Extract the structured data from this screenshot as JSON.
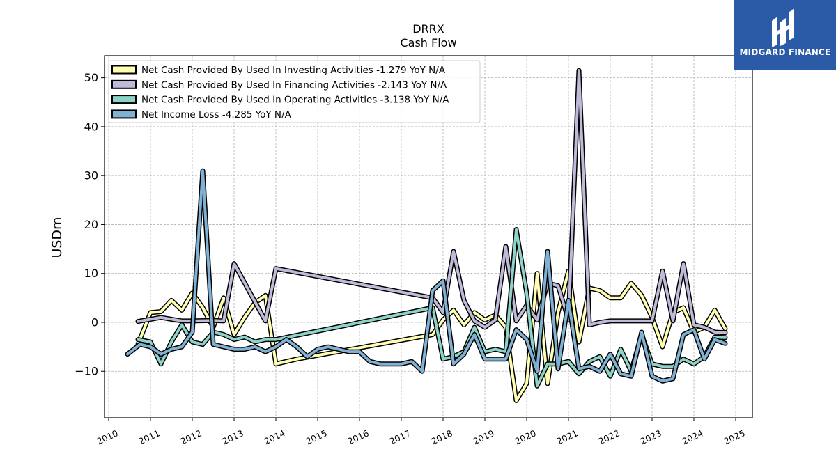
{
  "logo": {
    "text": "MIDGARD FINANCE",
    "bg": "#2b5aa7"
  },
  "chart_data": {
    "type": "line",
    "title": "DRRX",
    "subtitle": "Cash Flow",
    "ylabel": "USDm",
    "xlabel": "",
    "xlim": [
      2009.9,
      2025.4
    ],
    "ylim": [
      -19.5,
      54.5
    ],
    "yticks": [
      -10,
      0,
      10,
      20,
      30,
      40,
      50
    ],
    "yticklabels": [
      "−10",
      "0",
      "10",
      "20",
      "30",
      "40",
      "50"
    ],
    "xticks": [
      2010,
      2011,
      2012,
      2013,
      2014,
      2015,
      2016,
      2017,
      2018,
      2019,
      2020,
      2021,
      2022,
      2023,
      2024,
      2025
    ],
    "xticklabels": [
      "2010",
      "2011",
      "2012",
      "2013",
      "2014",
      "2015",
      "2016",
      "2017",
      "2018",
      "2019",
      "2020",
      "2021",
      "2022",
      "2023",
      "2024",
      "2025"
    ],
    "grid": true,
    "legend_position": "upper-left",
    "series": [
      {
        "name": "Net Cash Provided By Used In Investing Activities  -1.279 YoY N/A",
        "color": "#ffffb3",
        "points": [
          [
            2010.7,
            -4.5
          ],
          [
            2011.0,
            2.0
          ],
          [
            2011.25,
            2.2
          ],
          [
            2011.5,
            4.5
          ],
          [
            2011.75,
            2.5
          ],
          [
            2012.0,
            6.0
          ],
          [
            2012.25,
            3.0
          ],
          [
            2012.5,
            -1.0
          ],
          [
            2012.75,
            5.0
          ],
          [
            2013.0,
            -2.5
          ],
          [
            2013.25,
            1.0
          ],
          [
            2013.5,
            4.0
          ],
          [
            2013.75,
            5.5
          ],
          [
            2014.0,
            -8.5
          ],
          [
            2014.5,
            -7.5
          ],
          [
            2017.75,
            -2.5
          ],
          [
            2018.0,
            0.5
          ],
          [
            2018.25,
            2.5
          ],
          [
            2018.5,
            -0.5
          ],
          [
            2018.75,
            2.0
          ],
          [
            2019.0,
            0.5
          ],
          [
            2019.25,
            1.5
          ],
          [
            2019.5,
            -1.0
          ],
          [
            2019.75,
            -16.0
          ],
          [
            2020.0,
            -12.5
          ],
          [
            2020.25,
            10.0
          ],
          [
            2020.5,
            -12.5
          ],
          [
            2020.75,
            2.0
          ],
          [
            2021.0,
            10.5
          ],
          [
            2021.25,
            -4.0
          ],
          [
            2021.5,
            7.0
          ],
          [
            2021.75,
            6.5
          ],
          [
            2022.0,
            5.0
          ],
          [
            2022.25,
            5.0
          ],
          [
            2022.5,
            8.0
          ],
          [
            2022.75,
            5.5
          ],
          [
            2023.0,
            1.0
          ],
          [
            2023.25,
            -5.0
          ],
          [
            2023.5,
            2.0
          ],
          [
            2023.75,
            3.0
          ],
          [
            2024.0,
            -2.0
          ],
          [
            2024.25,
            -1.0
          ],
          [
            2024.5,
            2.5
          ],
          [
            2024.75,
            -1.3
          ]
        ]
      },
      {
        "name": "Net Cash Provided By Used In Financing Activities  -2.143 YoY N/A",
        "color": "#bebada",
        "points": [
          [
            2010.7,
            0.2
          ],
          [
            2011.25,
            1.0
          ],
          [
            2011.75,
            0.3
          ],
          [
            2012.0,
            0.3
          ],
          [
            2012.5,
            0.4
          ],
          [
            2012.75,
            0.3
          ],
          [
            2013.0,
            12.0
          ],
          [
            2013.75,
            0.3
          ],
          [
            2014.0,
            11.0
          ],
          [
            2017.75,
            5.0
          ],
          [
            2018.0,
            2.0
          ],
          [
            2018.25,
            14.5
          ],
          [
            2018.5,
            4.5
          ],
          [
            2018.75,
            0.3
          ],
          [
            2019.0,
            -1.0
          ],
          [
            2019.25,
            0.5
          ],
          [
            2019.5,
            15.5
          ],
          [
            2019.75,
            0.3
          ],
          [
            2020.0,
            3.5
          ],
          [
            2020.25,
            0.5
          ],
          [
            2020.5,
            8.0
          ],
          [
            2020.75,
            7.5
          ],
          [
            2021.0,
            0.5
          ],
          [
            2021.25,
            51.5
          ],
          [
            2021.5,
            -0.5
          ],
          [
            2021.75,
            0.0
          ],
          [
            2022.0,
            0.3
          ],
          [
            2022.25,
            0.3
          ],
          [
            2022.5,
            0.3
          ],
          [
            2022.75,
            0.3
          ],
          [
            2023.0,
            0.3
          ],
          [
            2023.25,
            10.5
          ],
          [
            2023.5,
            0.3
          ],
          [
            2023.75,
            12.0
          ],
          [
            2024.0,
            -0.5
          ],
          [
            2024.25,
            -1.0
          ],
          [
            2024.5,
            -2.0
          ],
          [
            2024.75,
            -2.1
          ]
        ]
      },
      {
        "name": "Net Cash Provided By Used In Operating Activities  -3.138 YoY N/A",
        "color": "#8dd3c7",
        "points": [
          [
            2010.7,
            -3.5
          ],
          [
            2011.0,
            -4.0
          ],
          [
            2011.25,
            -8.5
          ],
          [
            2011.5,
            -4.0
          ],
          [
            2011.75,
            -0.5
          ],
          [
            2012.0,
            -4.0
          ],
          [
            2012.25,
            -4.5
          ],
          [
            2012.5,
            -2.0
          ],
          [
            2012.75,
            -2.5
          ],
          [
            2013.0,
            -3.5
          ],
          [
            2013.25,
            -3.0
          ],
          [
            2013.5,
            -4.0
          ],
          [
            2013.75,
            -3.5
          ],
          [
            2014.0,
            -3.5
          ],
          [
            2017.75,
            3.0
          ],
          [
            2018.0,
            -7.5
          ],
          [
            2018.25,
            -7.0
          ],
          [
            2018.5,
            -6.0
          ],
          [
            2018.75,
            -1.0
          ],
          [
            2019.0,
            -6.0
          ],
          [
            2019.25,
            -5.5
          ],
          [
            2019.5,
            -6.0
          ],
          [
            2019.75,
            19.0
          ],
          [
            2020.0,
            6.0
          ],
          [
            2020.25,
            -13.0
          ],
          [
            2020.5,
            -8.5
          ],
          [
            2020.75,
            -8.5
          ],
          [
            2021.0,
            -8.0
          ],
          [
            2021.25,
            -10.5
          ],
          [
            2021.5,
            -8.0
          ],
          [
            2021.75,
            -7.0
          ],
          [
            2022.0,
            -11.0
          ],
          [
            2022.25,
            -5.5
          ],
          [
            2022.5,
            -10.0
          ],
          [
            2022.75,
            -2.5
          ],
          [
            2023.0,
            -8.5
          ],
          [
            2023.25,
            -9.0
          ],
          [
            2023.5,
            -9.0
          ],
          [
            2023.75,
            -7.5
          ],
          [
            2024.0,
            -8.5
          ],
          [
            2024.25,
            -7.0
          ],
          [
            2024.5,
            -3.0
          ],
          [
            2024.75,
            -3.1
          ]
        ]
      },
      {
        "name": "Net Income Loss  -4.285 YoY N/A",
        "color": "#80b1d3",
        "points": [
          [
            2010.45,
            -6.5
          ],
          [
            2010.75,
            -4.5
          ],
          [
            2011.0,
            -5.0
          ],
          [
            2011.25,
            -6.5
          ],
          [
            2011.5,
            -5.5
          ],
          [
            2011.75,
            -5.0
          ],
          [
            2012.0,
            -2.0
          ],
          [
            2012.25,
            31.0
          ],
          [
            2012.5,
            -4.5
          ],
          [
            2012.75,
            -5.0
          ],
          [
            2013.0,
            -5.5
          ],
          [
            2013.25,
            -5.5
          ],
          [
            2013.5,
            -5.0
          ],
          [
            2013.75,
            -6.0
          ],
          [
            2014.0,
            -5.0
          ],
          [
            2014.25,
            -3.5
          ],
          [
            2014.5,
            -5.0
          ],
          [
            2014.75,
            -7.0
          ],
          [
            2015.0,
            -5.5
          ],
          [
            2015.25,
            -5.0
          ],
          [
            2015.5,
            -5.5
          ],
          [
            2015.75,
            -6.0
          ],
          [
            2016.0,
            -6.0
          ],
          [
            2016.25,
            -8.0
          ],
          [
            2016.5,
            -8.5
          ],
          [
            2016.75,
            -8.5
          ],
          [
            2017.0,
            -8.5
          ],
          [
            2017.25,
            -8.0
          ],
          [
            2017.5,
            -10.0
          ],
          [
            2017.75,
            6.5
          ],
          [
            2018.0,
            8.5
          ],
          [
            2018.25,
            -8.5
          ],
          [
            2018.5,
            -6.5
          ],
          [
            2018.75,
            -2.5
          ],
          [
            2019.0,
            -7.5
          ],
          [
            2019.25,
            -7.5
          ],
          [
            2019.5,
            -7.5
          ],
          [
            2019.75,
            -1.5
          ],
          [
            2020.0,
            -3.5
          ],
          [
            2020.25,
            -10.0
          ],
          [
            2020.5,
            14.5
          ],
          [
            2020.75,
            -9.5
          ],
          [
            2021.0,
            4.5
          ],
          [
            2021.25,
            -9.5
          ],
          [
            2021.5,
            -9.0
          ],
          [
            2021.75,
            -10.0
          ],
          [
            2022.0,
            -6.5
          ],
          [
            2022.25,
            -10.5
          ],
          [
            2022.5,
            -11.0
          ],
          [
            2022.75,
            -2.0
          ],
          [
            2023.0,
            -11.0
          ],
          [
            2023.25,
            -12.0
          ],
          [
            2023.5,
            -11.5
          ],
          [
            2023.75,
            -2.5
          ],
          [
            2024.0,
            -1.5
          ],
          [
            2024.25,
            -7.5
          ],
          [
            2024.5,
            -3.5
          ],
          [
            2024.75,
            -4.3
          ]
        ]
      }
    ]
  }
}
